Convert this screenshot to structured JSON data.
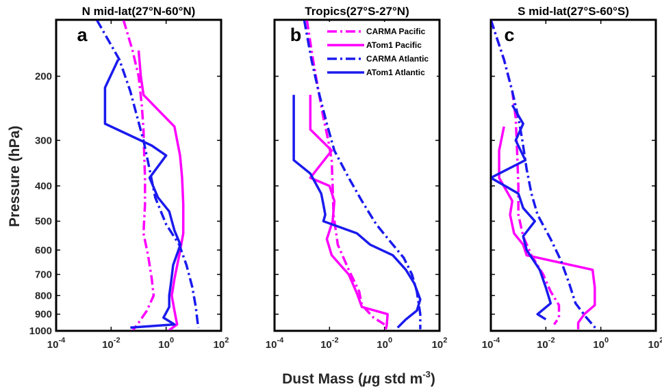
{
  "figure": {
    "ylabel": "Pressure (hPa)",
    "xlabel_main": "Dust Mass (",
    "xlabel_mu": "μ",
    "xlabel_rest": "g std m",
    "xlabel_exp": "-3",
    "xlabel_close": ")"
  },
  "colors": {
    "CARMA Pacific": "#ff00ff",
    "ATom1 Pacific": "#ff00ff",
    "CARMA Atlantic": "#1a1aee",
    "ATom1 Atlantic": "#1a1aee"
  },
  "legend": [
    "CARMA Pacific",
    "ATom1 Pacific",
    "CARMA Atlantic",
    "ATom1 Atlantic"
  ],
  "chart_data": [
    {
      "type": "line",
      "panel_label": "a",
      "title": "N mid-lat(27°N-60°N)",
      "xlabel": "Dust Mass (μg std m-3)",
      "ylabel": "Pressure (hPa)",
      "x_scale": "log",
      "y_scale": "log",
      "y_reversed": true,
      "xlim": [
        0.0001,
        100
      ],
      "ylim": [
        140,
        1000
      ],
      "x_ticks": [
        0.0001,
        0.01,
        1,
        100
      ],
      "x_tick_labels": [
        {
          "b": "10",
          "e": "-4"
        },
        {
          "b": "10",
          "e": "-2"
        },
        {
          "b": "10",
          "e": "0"
        },
        {
          "b": "10",
          "e": "2"
        }
      ],
      "y_ticks": [
        200,
        300,
        400,
        500,
        600,
        700,
        800,
        900,
        1000
      ],
      "y_tick_labels": [
        "200",
        "300",
        "400",
        "500",
        "600",
        "700",
        "800",
        "900",
        "1000"
      ],
      "series": [
        {
          "name": "CARMA Pacific",
          "style": "dashdot",
          "points": [
            [
              0.028,
              140
            ],
            [
              0.06,
              170
            ],
            [
              0.1,
              200
            ],
            [
              0.13,
              240
            ],
            [
              0.15,
              280
            ],
            [
              0.16,
              330
            ],
            [
              0.17,
              380
            ],
            [
              0.17,
              450
            ],
            [
              0.15,
              540
            ],
            [
              0.22,
              620
            ],
            [
              0.3,
              720
            ],
            [
              0.35,
              800
            ],
            [
              0.2,
              880
            ],
            [
              0.1,
              950
            ],
            [
              0.06,
              1000
            ]
          ]
        },
        {
          "name": "ATom1 Pacific",
          "style": "solid",
          "points": [
            [
              0.1,
              170
            ],
            [
              0.12,
              200
            ],
            [
              0.15,
              225
            ],
            [
              2,
              275
            ],
            [
              3.2,
              330
            ],
            [
              3.8,
              380
            ],
            [
              4.2,
              450
            ],
            [
              4.2,
              540
            ],
            [
              3,
              620
            ],
            [
              2,
              720
            ],
            [
              1.6,
              800
            ],
            [
              2,
              880
            ],
            [
              2.5,
              960
            ],
            [
              1.2,
              1000
            ]
          ]
        },
        {
          "name": "CARMA Atlantic",
          "style": "dashdot",
          "points": [
            [
              0.003,
              140
            ],
            [
              0.02,
              180
            ],
            [
              0.05,
              220
            ],
            [
              0.09,
              260
            ],
            [
              0.15,
              300
            ],
            [
              0.25,
              360
            ],
            [
              0.4,
              430
            ],
            [
              1,
              510
            ],
            [
              3,
              580
            ],
            [
              5.5,
              660
            ],
            [
              9,
              760
            ],
            [
              12,
              860
            ],
            [
              14,
              950
            ],
            [
              15,
              980
            ]
          ]
        },
        {
          "name": "ATom1 Atlantic",
          "style": "solid",
          "points": [
            [
              0.018,
              180
            ],
            [
              0.006,
              215
            ],
            [
              0.006,
              270
            ],
            [
              0.3,
              310
            ],
            [
              1,
              330
            ],
            [
              0.25,
              380
            ],
            [
              0.5,
              430
            ],
            [
              1.3,
              470
            ],
            [
              2,
              530
            ],
            [
              3.3,
              580
            ],
            [
              1.8,
              660
            ],
            [
              1.5,
              740
            ],
            [
              1.3,
              800
            ],
            [
              1.3,
              860
            ],
            [
              0.8,
              920
            ],
            [
              2,
              960
            ],
            [
              0.05,
              980
            ]
          ]
        }
      ]
    },
    {
      "type": "line",
      "panel_label": "b",
      "title": "Tropics(27°S-27°N)",
      "xlabel": "Dust Mass (μg std m-3)",
      "ylabel": "Pressure (hPa)",
      "x_scale": "log",
      "y_scale": "log",
      "y_reversed": true,
      "xlim": [
        0.0001,
        100
      ],
      "ylim": [
        140,
        1000
      ],
      "x_ticks": [
        0.0001,
        0.01,
        1,
        100
      ],
      "x_tick_labels": [
        {
          "b": "10",
          "e": "-4"
        },
        {
          "b": "10",
          "e": "-2"
        },
        {
          "b": "10",
          "e": "0"
        },
        {
          "b": "10",
          "e": "2"
        }
      ],
      "series": [
        {
          "name": "CARMA Pacific",
          "style": "dashdot",
          "points": [
            [
              0.0015,
              140
            ],
            [
              0.0025,
              180
            ],
            [
              0.004,
              220
            ],
            [
              0.006,
              260
            ],
            [
              0.009,
              300
            ],
            [
              0.012,
              340
            ],
            [
              0.013,
              400
            ],
            [
              0.014,
              480
            ],
            [
              0.02,
              580
            ],
            [
              0.05,
              680
            ],
            [
              0.12,
              780
            ],
            [
              0.15,
              850
            ],
            [
              0.4,
              920
            ],
            [
              1,
              960
            ]
          ]
        },
        {
          "name": "ATom1 Pacific",
          "style": "solid",
          "points": [
            [
              0.002,
              225
            ],
            [
              0.002,
              280
            ],
            [
              0.012,
              320
            ],
            [
              0.002,
              380
            ],
            [
              0.01,
              400
            ],
            [
              0.015,
              440
            ],
            [
              0.013,
              500
            ],
            [
              0.008,
              560
            ],
            [
              0.012,
              620
            ],
            [
              0.05,
              700
            ],
            [
              0.1,
              790
            ],
            [
              0.15,
              860
            ],
            [
              1.3,
              900
            ],
            [
              1.2,
              970
            ],
            [
              1.1,
              990
            ]
          ]
        },
        {
          "name": "CARMA Atlantic",
          "style": "dashdot",
          "points": [
            [
              0.0012,
              140
            ],
            [
              0.0022,
              180
            ],
            [
              0.004,
              220
            ],
            [
              0.008,
              270
            ],
            [
              0.015,
              320
            ],
            [
              0.05,
              380
            ],
            [
              0.15,
              440
            ],
            [
              0.5,
              510
            ],
            [
              2,
              580
            ],
            [
              5,
              630
            ],
            [
              10,
              700
            ],
            [
              15,
              780
            ],
            [
              20,
              900
            ],
            [
              20,
              990
            ]
          ]
        },
        {
          "name": "ATom1 Atlantic",
          "style": "solid",
          "points": [
            [
              0.0005,
              225
            ],
            [
              0.0005,
              340
            ],
            [
              0.002,
              370
            ],
            [
              0.005,
              420
            ],
            [
              0.006,
              450
            ],
            [
              0.007,
              480
            ],
            [
              0.006,
              500
            ],
            [
              0.1,
              540
            ],
            [
              0.3,
              580
            ],
            [
              2,
              620
            ],
            [
              6,
              680
            ],
            [
              12,
              740
            ],
            [
              20,
              820
            ],
            [
              15,
              880
            ],
            [
              6,
              930
            ],
            [
              3,
              980
            ]
          ]
        }
      ]
    },
    {
      "type": "line",
      "panel_label": "c",
      "title": "S mid-lat(27°S-60°S)",
      "xlabel": "Dust Mass (μg std m-3)",
      "ylabel": "Pressure (hPa)",
      "x_scale": "log",
      "y_scale": "log",
      "y_reversed": true,
      "xlim": [
        0.0001,
        100
      ],
      "ylim": [
        140,
        1000
      ],
      "x_ticks": [
        0.0001,
        0.01,
        1,
        100
      ],
      "x_tick_labels": [
        {
          "b": "10",
          "e": "-4"
        },
        {
          "b": "10",
          "e": "-2"
        },
        {
          "b": "10",
          "e": "0"
        },
        {
          "b": "10",
          "e": "2"
        }
      ],
      "series": [
        {
          "name": "CARMA Pacific",
          "style": "dashdot",
          "points": [
            [
              0.0001,
              140
            ],
            [
              0.0003,
              180
            ],
            [
              0.0006,
              220
            ],
            [
              0.0008,
              260
            ],
            [
              0.0009,
              320
            ],
            [
              0.001,
              400
            ],
            [
              0.001,
              480
            ],
            [
              0.0015,
              550
            ],
            [
              0.003,
              620
            ],
            [
              0.008,
              700
            ],
            [
              0.015,
              780
            ],
            [
              0.03,
              850
            ],
            [
              0.03,
              920
            ],
            [
              0.02,
              960
            ]
          ]
        },
        {
          "name": "ATom1 Pacific",
          "style": "solid",
          "points": [
            [
              0.0003,
              275
            ],
            [
              0.0002,
              320
            ],
            [
              0.0002,
              380
            ],
            [
              0.0006,
              440
            ],
            [
              0.0005,
              480
            ],
            [
              0.0007,
              540
            ],
            [
              0.0015,
              580
            ],
            [
              0.002,
              620
            ],
            [
              0.5,
              680
            ],
            [
              0.6,
              760
            ],
            [
              0.6,
              850
            ],
            [
              0.25,
              900
            ],
            [
              0.15,
              950
            ],
            [
              0.15,
              990
            ]
          ]
        },
        {
          "name": "CARMA Atlantic",
          "style": "dashdot",
          "points": [
            [
              0.0001,
              140
            ],
            [
              0.0003,
              180
            ],
            [
              0.0006,
              220
            ],
            [
              0.001,
              260
            ],
            [
              0.0014,
              300
            ],
            [
              0.002,
              360
            ],
            [
              0.003,
              420
            ],
            [
              0.005,
              480
            ],
            [
              0.015,
              560
            ],
            [
              0.035,
              640
            ],
            [
              0.07,
              740
            ],
            [
              0.12,
              840
            ],
            [
              0.3,
              920
            ],
            [
              0.7,
              990
            ]
          ]
        },
        {
          "name": "ATom1 Atlantic",
          "style": "solid",
          "points": [
            [
              0.0006,
              240
            ],
            [
              0.0015,
              270
            ],
            [
              0.0008,
              300
            ],
            [
              0.0018,
              340
            ],
            [
              0.0001,
              380
            ],
            [
              0.001,
              420
            ],
            [
              0.0015,
              460
            ],
            [
              0.004,
              500
            ],
            [
              0.0015,
              550
            ],
            [
              0.002,
              600
            ],
            [
              0.006,
              680
            ],
            [
              0.01,
              760
            ],
            [
              0.015,
              840
            ],
            [
              0.005,
              900
            ],
            [
              0.01,
              930
            ]
          ]
        }
      ]
    }
  ]
}
